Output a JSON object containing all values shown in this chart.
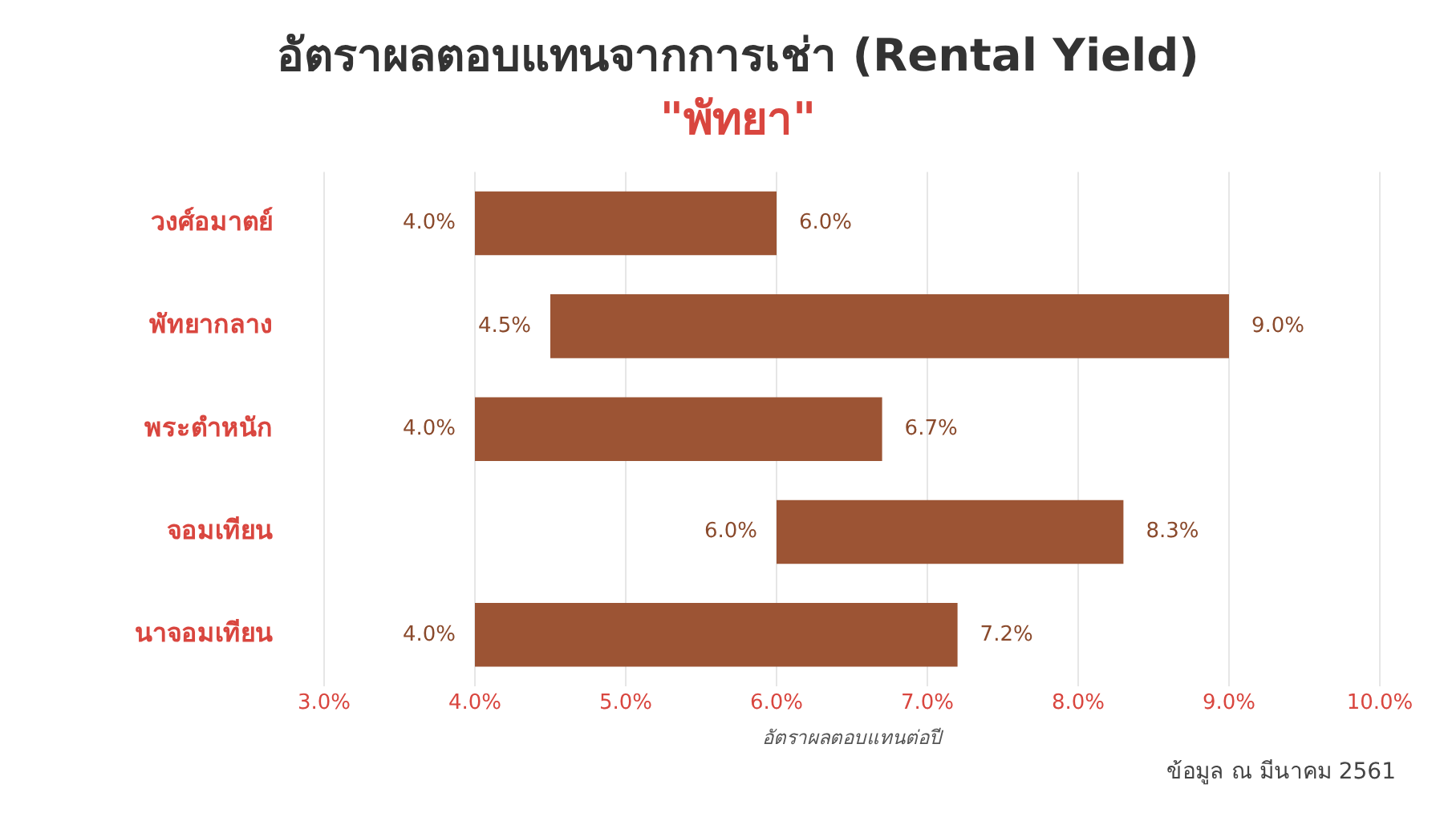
{
  "chart_data": {
    "type": "bar",
    "orientation": "horizontal",
    "title": "อัตราผลตอบแทนจากการเช่า (Rental Yield)",
    "subtitle": "\"พัทยา\"",
    "xlabel": "อัตราผลตอบแทนต่อปี",
    "categories": [
      "วงศ์อมาตย์",
      "พัทยากลาง",
      "พระตำหนัก",
      "จอมเทียน",
      "นาจอมเทียน"
    ],
    "base": [
      4.0,
      4.5,
      4.0,
      6.0,
      4.0
    ],
    "values": [
      2.0,
      4.5,
      2.7,
      2.3,
      3.2
    ],
    "color": "#9c5434",
    "value_labels": [
      "6.0%",
      "9.0%",
      "6.7%",
      "8.3%",
      "7.2%"
    ],
    "xlim": [
      3,
      10
    ],
    "xticks": [
      {
        "value": 3,
        "label": "3.0%"
      },
      {
        "value": 4,
        "label": "4.0%"
      },
      {
        "value": 5,
        "label": "5.0%"
      },
      {
        "value": 6,
        "label": "6.0%"
      },
      {
        "value": 7,
        "label": "7.0%"
      },
      {
        "value": 8,
        "label": "8.0%"
      },
      {
        "value": 9,
        "label": "9.0%"
      },
      {
        "value": 10,
        "label": "10.0%"
      }
    ],
    "grid": "x",
    "legend": false,
    "annotations": [
      {
        "text": "4.0%",
        "x": 4.0,
        "y": "วงศ์อมาตย์"
      },
      {
        "text": "4.5%",
        "x": 4.5,
        "y": "พัทยากลาง"
      },
      {
        "text": "4.0%",
        "x": 4.0,
        "y": "พระตำหนัก"
      },
      {
        "text": "6.0%",
        "x": 6.0,
        "y": "จอมเทียน"
      },
      {
        "text": "4.0%",
        "x": 4.0,
        "y": "นาจอมเทียน"
      },
      "ข้อมูล ณ มีนาคม 2561"
    ]
  }
}
